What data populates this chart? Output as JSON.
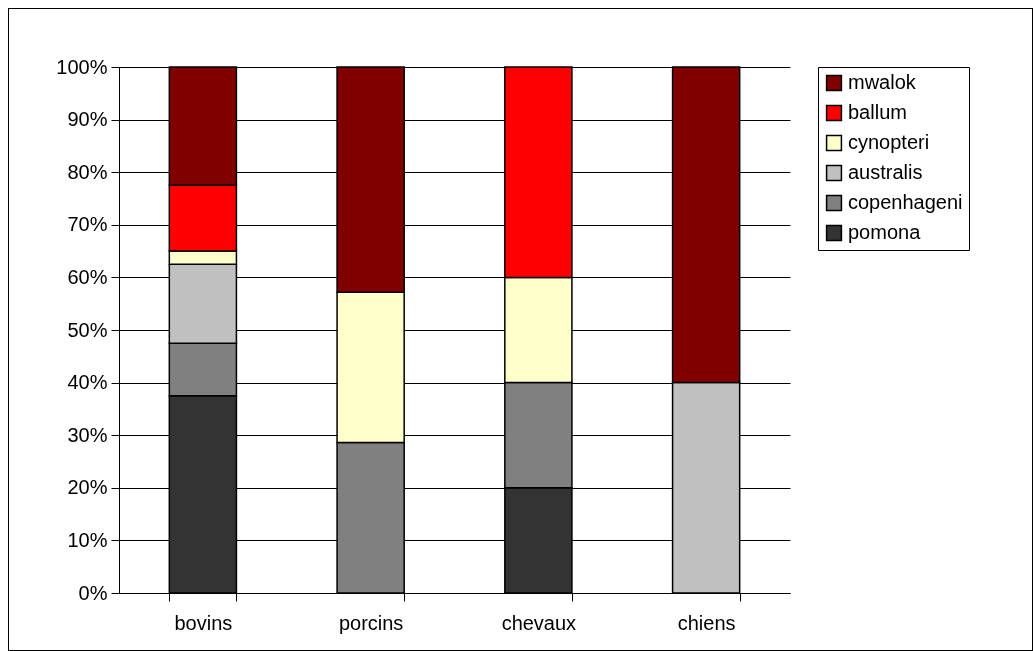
{
  "chart_data": {
    "type": "bar",
    "stacked": true,
    "categories": [
      "bovins",
      "porcins",
      "chevaux",
      "chiens"
    ],
    "series": [
      {
        "name": "pomona",
        "color": "#333333",
        "values": [
          37.5,
          null,
          20,
          null
        ]
      },
      {
        "name": "copenhageni",
        "color": "#808080",
        "values": [
          10,
          28.6,
          20,
          null
        ]
      },
      {
        "name": "australis",
        "color": "#c0c0c0",
        "values": [
          15,
          null,
          null,
          40
        ]
      },
      {
        "name": "cynopteri",
        "color": "#ffffcc",
        "values": [
          2.5,
          28.6,
          20,
          null
        ]
      },
      {
        "name": "ballum",
        "color": "#ff0000",
        "values": [
          12.5,
          null,
          40,
          null
        ]
      },
      {
        "name": "mwalok",
        "color": "#800000",
        "values": [
          22.5,
          42.8,
          null,
          60
        ]
      }
    ],
    "ylim": [
      0,
      100
    ],
    "yticks": [
      {
        "value": 0,
        "label": "0%"
      },
      {
        "value": 10,
        "label": "10%"
      },
      {
        "value": 20,
        "label": "20%"
      },
      {
        "value": 30,
        "label": "30%"
      },
      {
        "value": 40,
        "label": "40%"
      },
      {
        "value": 50,
        "label": "50%"
      },
      {
        "value": 60,
        "label": "60%"
      },
      {
        "value": 70,
        "label": "70%"
      },
      {
        "value": 80,
        "label": "80%"
      },
      {
        "value": 90,
        "label": "90%"
      },
      {
        "value": 100,
        "label": "100%"
      }
    ],
    "grid": "y",
    "legend": "right"
  }
}
